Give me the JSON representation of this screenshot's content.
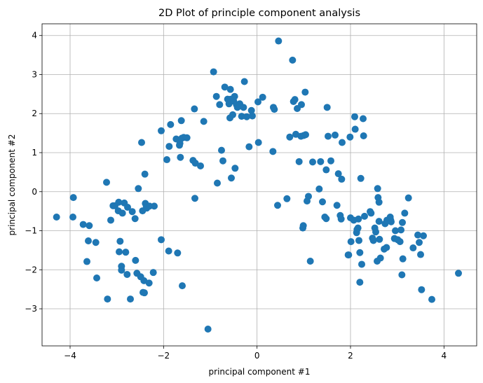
{
  "chart_data": {
    "type": "scatter",
    "title": "2D Plot of principle component analysis",
    "xlabel": "principal component #1",
    "ylabel": "principal component #2",
    "xlim": [
      -4.6,
      4.7
    ],
    "ylim": [
      -3.95,
      4.3
    ],
    "xticks": [
      -4,
      -2,
      0,
      2,
      4
    ],
    "yticks": [
      -3,
      -2,
      -1,
      0,
      1,
      2,
      3,
      4
    ],
    "xtick_labels": [
      "−4",
      "−2",
      "0",
      "2",
      "4"
    ],
    "ytick_labels": [
      "−3",
      "−2",
      "−1",
      "0",
      "1",
      "2",
      "3",
      "4"
    ],
    "grid": true,
    "marker_color": "#1f77b4",
    "points": [
      [
        -4.29,
        -0.65
      ],
      [
        -3.93,
        -0.15
      ],
      [
        -3.94,
        -0.65
      ],
      [
        -3.72,
        -0.84
      ],
      [
        -3.61,
        -1.26
      ],
      [
        -3.59,
        -0.87
      ],
      [
        -3.64,
        -1.79
      ],
      [
        -3.45,
        -1.3
      ],
      [
        -3.43,
        -2.21
      ],
      [
        -3.22,
        0.24
      ],
      [
        -3.2,
        -2.75
      ],
      [
        -3.13,
        -0.73
      ],
      [
        -3.08,
        -0.36
      ],
      [
        -3.04,
        -0.36
      ],
      [
        -2.97,
        -0.49
      ],
      [
        -2.96,
        -0.27
      ],
      [
        -2.93,
        -1.27
      ],
      [
        -2.95,
        -1.54
      ],
      [
        -2.9,
        -1.91
      ],
      [
        -2.9,
        -2.01
      ],
      [
        -2.88,
        -0.55
      ],
      [
        -2.84,
        -0.29
      ],
      [
        -2.81,
        -1.55
      ],
      [
        -2.78,
        -2.12
      ],
      [
        -2.77,
        -0.4
      ],
      [
        -2.71,
        -2.75
      ],
      [
        -2.67,
        -0.51
      ],
      [
        -2.61,
        -0.69
      ],
      [
        -2.6,
        -1.76
      ],
      [
        -2.57,
        -2.09
      ],
      [
        -2.54,
        0.08
      ],
      [
        -2.49,
        -2.18
      ],
      [
        -2.47,
        1.26
      ],
      [
        -2.45,
        -0.49
      ],
      [
        -2.44,
        -2.58
      ],
      [
        -2.42,
        -2.28
      ],
      [
        -2.41,
        -2.59
      ],
      [
        -2.4,
        0.45
      ],
      [
        -2.39,
        -0.3
      ],
      [
        -2.37,
        -0.37
      ],
      [
        -2.36,
        -0.42
      ],
      [
        -2.31,
        -2.34
      ],
      [
        -2.3,
        -0.37
      ],
      [
        -2.22,
        -2.07
      ],
      [
        -2.2,
        -0.37
      ],
      [
        -2.05,
        -1.23
      ],
      [
        -2.05,
        1.56
      ],
      [
        -1.93,
        0.82
      ],
      [
        -1.89,
        -1.52
      ],
      [
        -1.88,
        1.16
      ],
      [
        -1.85,
        1.72
      ],
      [
        -1.73,
        1.35
      ],
      [
        -1.7,
        -1.57
      ],
      [
        -1.66,
        1.19
      ],
      [
        -1.65,
        1.24
      ],
      [
        -1.64,
        0.88
      ],
      [
        -1.62,
        1.82
      ],
      [
        -1.61,
        1.37
      ],
      [
        -1.6,
        -2.41
      ],
      [
        -1.57,
        1.39
      ],
      [
        -1.5,
        1.38
      ],
      [
        -1.37,
        0.8
      ],
      [
        -1.34,
        2.12
      ],
      [
        -1.32,
        0.73
      ],
      [
        -1.33,
        -0.17
      ],
      [
        -1.21,
        0.66
      ],
      [
        -1.14,
        1.8
      ],
      [
        -1.05,
        -3.52
      ],
      [
        -0.93,
        3.07
      ],
      [
        -0.87,
        2.44
      ],
      [
        -0.85,
        0.22
      ],
      [
        -0.8,
        2.23
      ],
      [
        -0.76,
        1.06
      ],
      [
        -0.73,
        0.79
      ],
      [
        -0.69,
        2.68
      ],
      [
        -0.63,
        2.37
      ],
      [
        -0.6,
        2.25
      ],
      [
        -0.58,
        1.89
      ],
      [
        -0.57,
        2.62
      ],
      [
        -0.56,
        2.37
      ],
      [
        -0.55,
        0.35
      ],
      [
        -0.52,
        1.97
      ],
      [
        -0.5,
        2.32
      ],
      [
        -0.48,
        2.44
      ],
      [
        -0.47,
        0.6
      ],
      [
        -0.44,
        2.23
      ],
      [
        -0.42,
        2.16
      ],
      [
        -0.37,
        2.25
      ],
      [
        -0.33,
        1.93
      ],
      [
        -0.29,
        2.16
      ],
      [
        -0.27,
        2.82
      ],
      [
        -0.22,
        1.92
      ],
      [
        -0.17,
        1.15
      ],
      [
        -0.12,
        2.08
      ],
      [
        -0.1,
        1.94
      ],
      [
        0.02,
        2.3
      ],
      [
        0.03,
        1.26
      ],
      [
        0.12,
        2.42
      ],
      [
        0.34,
        1.03
      ],
      [
        0.35,
        2.16
      ],
      [
        0.37,
        2.11
      ],
      [
        0.44,
        -0.35
      ],
      [
        0.46,
        3.86
      ],
      [
        0.64,
        -0.18
      ],
      [
        0.7,
        1.4
      ],
      [
        0.76,
        3.37
      ],
      [
        0.78,
        2.31
      ],
      [
        0.81,
        2.36
      ],
      [
        0.83,
        1.47
      ],
      [
        0.86,
        2.13
      ],
      [
        0.9,
        0.77
      ],
      [
        0.94,
        1.42
      ],
      [
        0.95,
        2.23
      ],
      [
        0.98,
        -0.93
      ],
      [
        0.99,
        -0.87
      ],
      [
        1.0,
        1.44
      ],
      [
        1.03,
        2.55
      ],
      [
        1.04,
        1.46
      ],
      [
        1.07,
        -0.24
      ],
      [
        1.1,
        -0.12
      ],
      [
        1.14,
        -1.78
      ],
      [
        1.19,
        0.76
      ],
      [
        1.33,
        0.07
      ],
      [
        1.36,
        0.77
      ],
      [
        1.4,
        -0.26
      ],
      [
        1.45,
        -0.65
      ],
      [
        1.48,
        -0.69
      ],
      [
        1.48,
        0.56
      ],
      [
        1.5,
        2.16
      ],
      [
        1.52,
        1.42
      ],
      [
        1.58,
        0.79
      ],
      [
        1.67,
        1.45
      ],
      [
        1.71,
        -0.35
      ],
      [
        1.74,
        0.46
      ],
      [
        1.78,
        -0.61
      ],
      [
        1.8,
        -0.7
      ],
      [
        1.81,
        0.32
      ],
      [
        1.82,
        1.26
      ],
      [
        1.95,
        -1.62
      ],
      [
        1.96,
        -1.62
      ],
      [
        1.99,
        1.4
      ],
      [
        2.0,
        -0.67
      ],
      [
        2.01,
        -1.28
      ],
      [
        2.07,
        -0.73
      ],
      [
        2.09,
        1.92
      ],
      [
        2.1,
        1.6
      ],
      [
        2.13,
        -1.05
      ],
      [
        2.14,
        -0.97
      ],
      [
        2.16,
        -0.93
      ],
      [
        2.17,
        -0.7
      ],
      [
        2.18,
        -1.25
      ],
      [
        2.2,
        -2.32
      ],
      [
        2.2,
        -1.56
      ],
      [
        2.22,
        0.34
      ],
      [
        2.24,
        -1.86
      ],
      [
        2.27,
        1.87
      ],
      [
        2.28,
        1.43
      ],
      [
        2.3,
        -0.63
      ],
      [
        2.42,
        -0.51
      ],
      [
        2.44,
        -0.55
      ],
      [
        2.47,
        -1.19
      ],
      [
        2.49,
        -1.25
      ],
      [
        2.52,
        -0.93
      ],
      [
        2.54,
        -1.03
      ],
      [
        2.57,
        -1.78
      ],
      [
        2.58,
        0.08
      ],
      [
        2.59,
        -0.15
      ],
      [
        2.61,
        -0.27
      ],
      [
        2.61,
        -0.76
      ],
      [
        2.62,
        -1.22
      ],
      [
        2.64,
        -1.7
      ],
      [
        2.72,
        -1.47
      ],
      [
        2.74,
        -0.82
      ],
      [
        2.77,
        -1.43
      ],
      [
        2.78,
        -0.73
      ],
      [
        2.85,
        -0.65
      ],
      [
        2.86,
        -0.73
      ],
      [
        2.87,
        -0.77
      ],
      [
        2.94,
        -1.2
      ],
      [
        2.96,
        -1.0
      ],
      [
        3.01,
        -1.23
      ],
      [
        3.06,
        -1.28
      ],
      [
        3.08,
        -0.98
      ],
      [
        3.1,
        -2.13
      ],
      [
        3.11,
        -0.79
      ],
      [
        3.12,
        -1.72
      ],
      [
        3.16,
        -0.55
      ],
      [
        3.24,
        -0.16
      ],
      [
        3.34,
        -1.44
      ],
      [
        3.44,
        -1.11
      ],
      [
        3.47,
        -1.3
      ],
      [
        3.5,
        -1.61
      ],
      [
        3.52,
        -2.51
      ],
      [
        3.56,
        -1.13
      ],
      [
        3.74,
        -2.76
      ],
      [
        4.31,
        -2.09
      ]
    ]
  }
}
